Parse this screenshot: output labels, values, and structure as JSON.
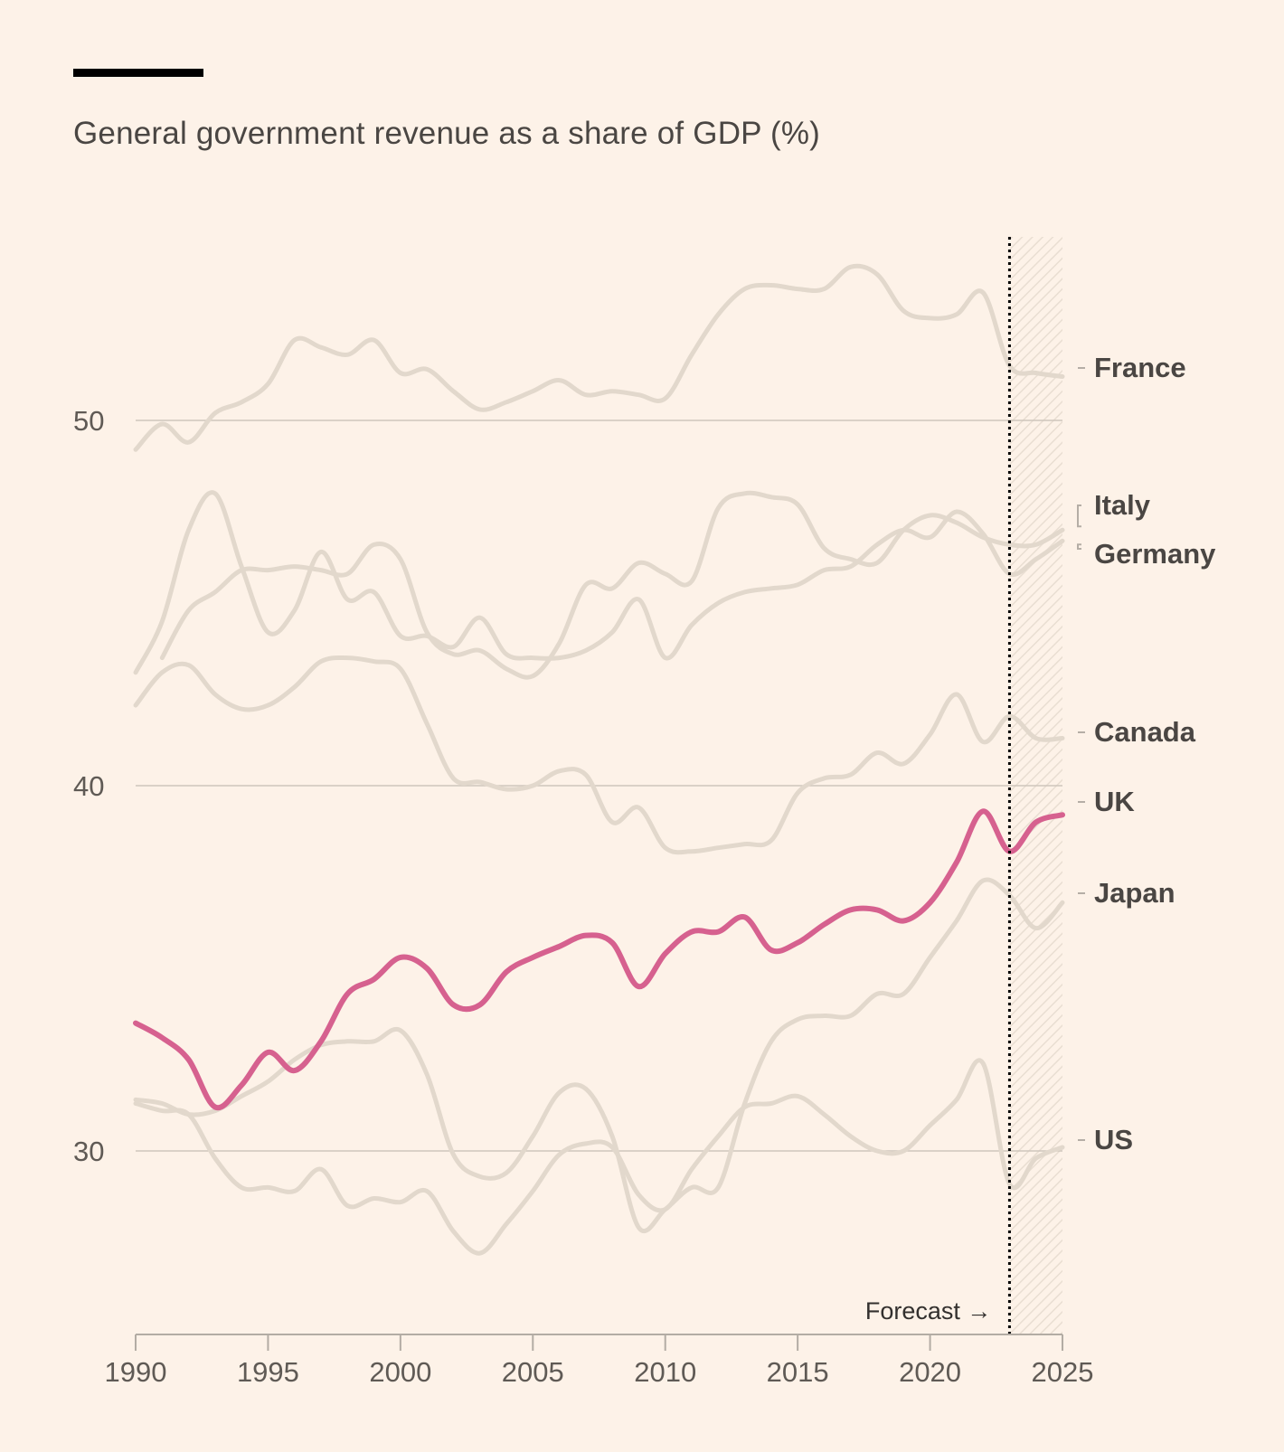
{
  "header": {
    "title": "General government revenue as a share of GDP (%)"
  },
  "colors": {
    "background": "#fdf2e8",
    "muted_line": "#e2d8cc",
    "highlight_line": "#d6618f",
    "grid": "#cfc6bc",
    "label_text": "#4a4643",
    "axis": "#b3aca4"
  },
  "chart_data": {
    "type": "line",
    "title": "General government revenue as a share of GDP (%)",
    "xlabel": "",
    "ylabel": "",
    "xlim": [
      1990,
      2025
    ],
    "ylim": [
      25,
      55
    ],
    "x_ticks": [
      1990,
      1995,
      2000,
      2005,
      2010,
      2015,
      2020,
      2025
    ],
    "y_ticks": [
      30,
      40,
      50
    ],
    "y_tick_labels": [
      "30",
      "40",
      "50"
    ],
    "x_tick_labels": [
      "1990",
      "1995",
      "2000",
      "2005",
      "2010",
      "2015",
      "2020",
      "2025"
    ],
    "grid": true,
    "forecast_start": 2023,
    "forecast_label": "Forecast",
    "forecast_arrow": "→",
    "years": [
      1990,
      1991,
      1992,
      1993,
      1994,
      1995,
      1996,
      1997,
      1998,
      1999,
      2000,
      2001,
      2002,
      2003,
      2004,
      2005,
      2006,
      2007,
      2008,
      2009,
      2010,
      2011,
      2012,
      2013,
      2014,
      2015,
      2016,
      2017,
      2018,
      2019,
      2020,
      2021,
      2022,
      2023,
      2024,
      2025
    ],
    "series": [
      {
        "name": "France",
        "highlight": false,
        "values": [
          49.2,
          49.9,
          49.4,
          50.2,
          50.5,
          51.0,
          52.2,
          52.0,
          51.8,
          52.2,
          51.3,
          51.4,
          50.8,
          50.3,
          50.5,
          50.8,
          51.1,
          50.7,
          50.8,
          50.7,
          50.6,
          51.8,
          52.9,
          53.6,
          53.7,
          53.6,
          53.6,
          54.2,
          54.0,
          53.0,
          52.8,
          52.9,
          53.5,
          51.5,
          51.3,
          51.2
        ]
      },
      {
        "name": "Italy",
        "highlight": false,
        "values": [
          null,
          43.5,
          44.8,
          45.3,
          45.9,
          45.9,
          46.0,
          45.9,
          45.8,
          46.6,
          46.2,
          44.2,
          43.6,
          43.7,
          43.2,
          43.0,
          43.9,
          45.5,
          45.4,
          46.1,
          45.8,
          45.6,
          47.6,
          48.0,
          47.9,
          47.7,
          46.5,
          46.2,
          46.1,
          47.0,
          47.4,
          47.2,
          46.8,
          46.6,
          46.6,
          47.0
        ]
      },
      {
        "name": "Germany",
        "highlight": false,
        "values": [
          43.1,
          44.5,
          47.0,
          48.0,
          46.0,
          44.2,
          44.8,
          46.4,
          45.1,
          45.3,
          44.1,
          44.1,
          43.8,
          44.6,
          43.6,
          43.5,
          43.5,
          43.7,
          44.2,
          45.1,
          43.5,
          44.4,
          45.0,
          45.3,
          45.4,
          45.5,
          45.9,
          46.0,
          46.6,
          47.0,
          46.8,
          47.5,
          46.9,
          45.8,
          46.2,
          46.7
        ]
      },
      {
        "name": "Canada",
        "highlight": false,
        "values": [
          42.2,
          43.1,
          43.3,
          42.5,
          42.1,
          42.2,
          42.7,
          43.4,
          43.5,
          43.4,
          43.2,
          41.7,
          40.2,
          40.1,
          39.9,
          40.0,
          40.4,
          40.3,
          39.0,
          39.4,
          38.3,
          38.2,
          38.3,
          38.4,
          38.5,
          39.8,
          40.2,
          40.3,
          40.9,
          40.6,
          41.4,
          42.5,
          41.2,
          41.9,
          41.3,
          41.3
        ]
      },
      {
        "name": "UK",
        "highlight": true,
        "values": [
          33.5,
          33.1,
          32.5,
          31.2,
          31.8,
          32.7,
          32.2,
          33.0,
          34.3,
          34.7,
          35.3,
          35.0,
          34.0,
          34.0,
          34.9,
          35.3,
          35.6,
          35.9,
          35.7,
          34.5,
          35.4,
          36.0,
          36.0,
          36.4,
          35.5,
          35.7,
          36.2,
          36.6,
          36.6,
          36.3,
          36.8,
          37.9,
          39.3,
          38.2,
          39.0,
          39.2
        ]
      },
      {
        "name": "Japan",
        "highlight": false,
        "values": [
          31.4,
          31.3,
          31.0,
          31.1,
          31.5,
          31.9,
          32.5,
          32.9,
          33.0,
          33.0,
          33.3,
          32.1,
          29.9,
          29.3,
          29.4,
          30.4,
          31.6,
          31.7,
          30.4,
          27.9,
          28.4,
          29.0,
          29.0,
          31.3,
          33.0,
          33.6,
          33.7,
          33.7,
          34.3,
          34.3,
          35.3,
          36.3,
          37.4,
          37.0,
          36.1,
          36.8
        ]
      },
      {
        "name": "US",
        "highlight": false,
        "values": [
          31.3,
          31.1,
          31.0,
          29.8,
          29.0,
          29.0,
          28.9,
          29.5,
          28.5,
          28.7,
          28.6,
          28.9,
          27.8,
          27.2,
          28.0,
          28.9,
          29.9,
          30.2,
          30.1,
          28.8,
          28.4,
          29.5,
          30.4,
          31.2,
          31.3,
          31.5,
          31.0,
          30.4,
          30.0,
          30.0,
          30.7,
          31.4,
          32.4,
          29.1,
          29.8,
          30.1
        ]
      }
    ]
  }
}
